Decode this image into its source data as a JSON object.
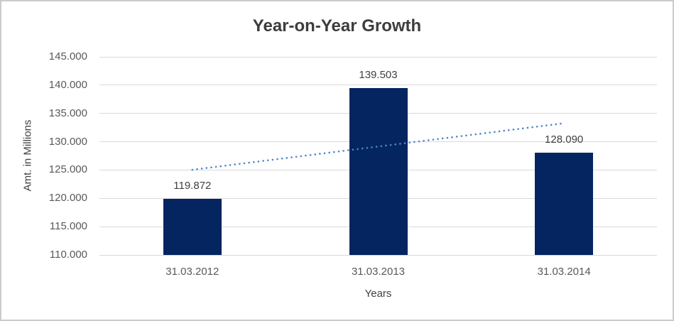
{
  "chart_data": {
    "type": "bar",
    "title": "Year-on-Year Growth",
    "xlabel": "Years",
    "ylabel": "Amt. in Millions",
    "categories": [
      "31.03.2012",
      "31.03.2013",
      "31.03.2014"
    ],
    "values": [
      119.872,
      139.503,
      128.09
    ],
    "value_labels": [
      "119.872",
      "139.503",
      "128.090"
    ],
    "ylim": [
      110,
      145
    ],
    "ytick_step": 5,
    "ytick_labels": [
      "110.000",
      "115.000",
      "120.000",
      "125.000",
      "130.000",
      "135.000",
      "140.000",
      "145.000"
    ],
    "grid": true,
    "legend": "none",
    "trendline": {
      "type": "linear",
      "style": "dotted",
      "start_value": 125.046,
      "end_value": 133.264
    },
    "colors": {
      "bar": "#042560",
      "trendline": "#4c87c9",
      "gridline": "#d9d9d9",
      "border": "#cbcbcb",
      "background": "#ffffff",
      "title_text": "#3d3d3d",
      "axis_text": "#595959",
      "label_text": "#404040"
    }
  }
}
